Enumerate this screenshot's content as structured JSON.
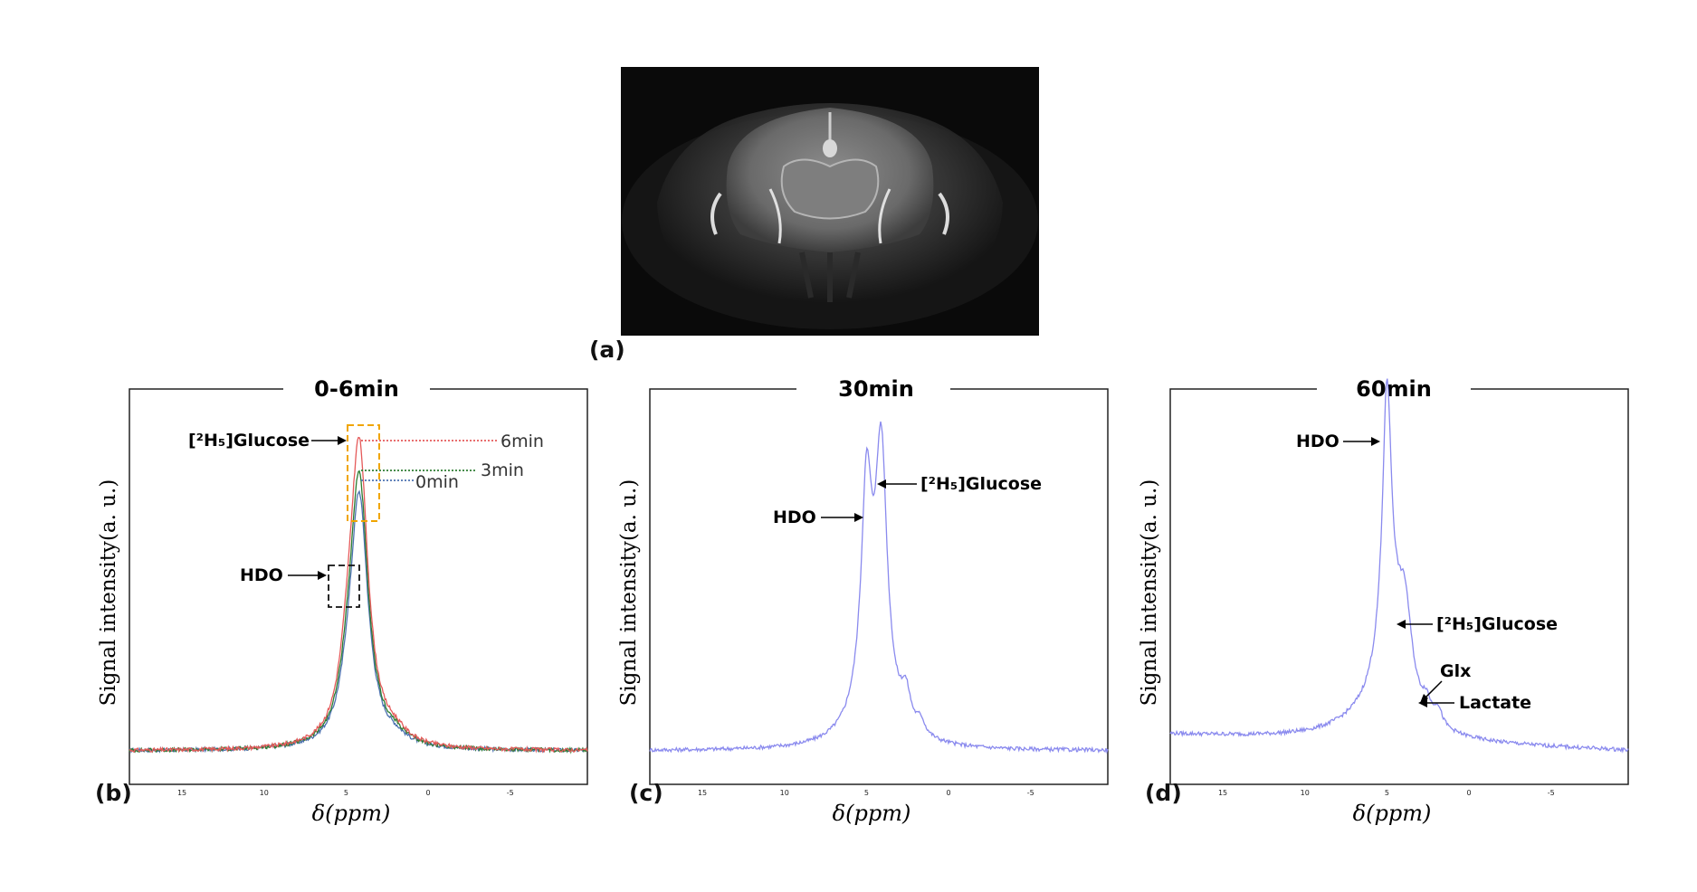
{
  "panel_labels": {
    "a": "(a)",
    "b": "(b)",
    "c": "(c)",
    "d": "(d)"
  },
  "colors": {
    "spectrum": "#8a8aee",
    "t0": "#4c72b0",
    "t3": "#2e7d32",
    "t6": "#e55a5a",
    "highlight_box": "#f0a500"
  },
  "chart_data": [
    {
      "panel": "b",
      "type": "line",
      "title": "0-6min",
      "xlabel": "δ(ppm)",
      "ylabel": "Signal intensity(a. u.)",
      "x_ticks": [
        "15",
        "10",
        "5",
        "0",
        "-5"
      ],
      "xlim": [
        18.2,
        -9.7
      ],
      "ylim": [
        0,
        1
      ],
      "x_reversed": true,
      "series": [
        {
          "name": "0min",
          "color": "#4c72b0",
          "peaks": [
            {
              "x": 4.2,
              "h": 0.76,
              "w": 0.65
            },
            {
              "x": 4.9,
              "h": 0.08,
              "w": 0.6
            },
            {
              "x": 2.0,
              "h": 0.02,
              "w": 0.9
            }
          ]
        },
        {
          "name": "3min",
          "color": "#2e7d32",
          "peaks": [
            {
              "x": 4.2,
              "h": 0.81,
              "w": 0.65
            },
            {
              "x": 4.9,
              "h": 0.11,
              "w": 0.6
            },
            {
              "x": 2.0,
              "h": 0.025,
              "w": 0.9
            }
          ]
        },
        {
          "name": "6min",
          "color": "#e55a5a",
          "peaks": [
            {
              "x": 4.2,
              "h": 0.9,
              "w": 0.65
            },
            {
              "x": 4.9,
              "h": 0.14,
              "w": 0.6
            },
            {
              "x": 2.0,
              "h": 0.03,
              "w": 0.9
            }
          ]
        }
      ],
      "annotations": [
        {
          "text": "[²H₅]Glucose",
          "x": 4.2
        },
        {
          "text": "HDO",
          "x": 4.9
        }
      ],
      "time_labels": [
        "6min",
        "3min",
        "0min"
      ]
    },
    {
      "panel": "c",
      "type": "line",
      "title": "30min",
      "xlabel": "δ(ppm)",
      "ylabel": "Signal intensity(a. u.)",
      "x_ticks": [
        "15",
        "10",
        "5",
        "0",
        "-5"
      ],
      "xlim": [
        18.2,
        -9.7
      ],
      "ylim": [
        0,
        1
      ],
      "x_reversed": true,
      "series": [
        {
          "color": "#8a8aee",
          "peaks": [
            {
              "x": 5.0,
              "h": 0.62,
              "w": 0.38
            },
            {
              "x": 4.1,
              "h": 0.75,
              "w": 0.42
            },
            {
              "x": 4.6,
              "h": 0.18,
              "w": 1.3
            },
            {
              "x": 2.6,
              "h": 0.1,
              "w": 0.35
            },
            {
              "x": 1.7,
              "h": 0.04,
              "w": 0.3
            }
          ]
        }
      ],
      "annotations": [
        {
          "text": "HDO",
          "x": 5.0
        },
        {
          "text": "[²H₅]Glucose",
          "x": 4.1
        }
      ]
    },
    {
      "panel": "d",
      "type": "line",
      "title": "60min",
      "xlabel": "δ(ppm)",
      "ylabel": "Signal intensity(a. u.)",
      "x_ticks": [
        "15",
        "10",
        "5",
        "0",
        "-5"
      ],
      "xlim": [
        18.2,
        -9.7
      ],
      "ylim": [
        0,
        1
      ],
      "x_reversed": true,
      "series": [
        {
          "color": "#8a8aee",
          "peaks": [
            {
              "x": 5.0,
              "h": 0.76,
              "w": 0.32
            },
            {
              "x": 4.8,
              "h": 0.28,
              "w": 1.0
            },
            {
              "x": 3.9,
              "h": 0.26,
              "w": 0.5
            },
            {
              "x": 6.0,
              "h": 0.05,
              "w": 2.6
            },
            {
              "x": 2.6,
              "h": 0.05,
              "w": 0.3
            },
            {
              "x": 1.9,
              "h": 0.05,
              "w": 0.3
            }
          ]
        }
      ],
      "baseline_tilt": 0.05,
      "annotations": [
        {
          "text": "HDO",
          "x": 5.0
        },
        {
          "text": "[²H₅]Glucose",
          "x": 4.2
        },
        {
          "text": "Glx",
          "x": 2.6
        },
        {
          "text": "Lactate",
          "x": 1.9
        }
      ]
    }
  ]
}
